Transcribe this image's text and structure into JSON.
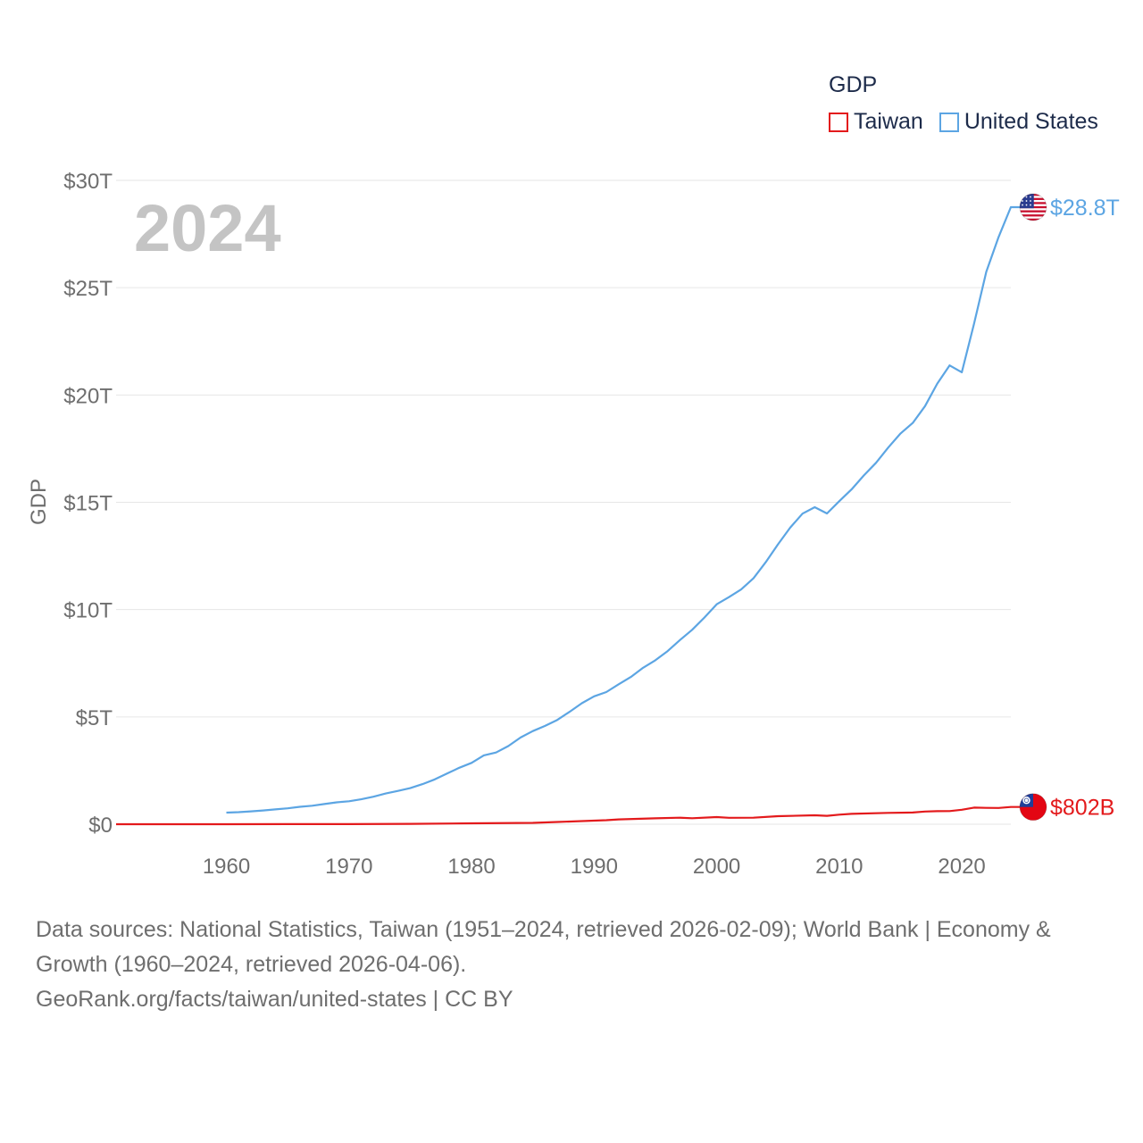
{
  "chart_data": {
    "type": "line",
    "title": "",
    "watermark_year": "2024",
    "ylabel": "GDP",
    "xlabel": "",
    "xlim": [
      1951,
      2024
    ],
    "ylim": [
      0,
      30
    ],
    "y_unit": "trillion USD",
    "x_ticks": [
      1960,
      1970,
      1980,
      1990,
      2000,
      2010,
      2020
    ],
    "y_ticks": [
      {
        "value": 0,
        "label": "$0"
      },
      {
        "value": 5,
        "label": "$5T"
      },
      {
        "value": 10,
        "label": "$10T"
      },
      {
        "value": 15,
        "label": "$15T"
      },
      {
        "value": 20,
        "label": "$20T"
      },
      {
        "value": 25,
        "label": "$25T"
      },
      {
        "value": 30,
        "label": "$30T"
      }
    ],
    "grid": true,
    "legend": {
      "title": "GDP",
      "position": "top-right"
    },
    "series": [
      {
        "name": "Taiwan",
        "color": "#e31a1c",
        "end_label": "$802B",
        "flag": "taiwan-flag",
        "x": [
          1951,
          1955,
          1960,
          1965,
          1970,
          1975,
          1980,
          1985,
          1987,
          1990,
          1991,
          1992,
          1995,
          1997,
          1998,
          2000,
          2001,
          2003,
          2005,
          2008,
          2009,
          2010,
          2011,
          2014,
          2016,
          2017,
          2018,
          2019,
          2020,
          2021,
          2022,
          2023,
          2024
        ],
        "values": [
          0.001,
          0.002,
          0.002,
          0.003,
          0.006,
          0.016,
          0.042,
          0.064,
          0.104,
          0.166,
          0.187,
          0.223,
          0.274,
          0.302,
          0.279,
          0.331,
          0.299,
          0.305,
          0.375,
          0.416,
          0.39,
          0.444,
          0.484,
          0.53,
          0.543,
          0.59,
          0.609,
          0.611,
          0.673,
          0.775,
          0.762,
          0.756,
          0.802
        ]
      },
      {
        "name": "United States",
        "color": "#5ca5e3",
        "end_label": "$28.8T",
        "flag": "us-flag",
        "x": [
          1960,
          1961,
          1962,
          1963,
          1964,
          1965,
          1966,
          1967,
          1968,
          1969,
          1970,
          1971,
          1972,
          1973,
          1974,
          1975,
          1976,
          1977,
          1978,
          1979,
          1980,
          1981,
          1982,
          1983,
          1984,
          1985,
          1986,
          1987,
          1988,
          1989,
          1990,
          1991,
          1992,
          1993,
          1994,
          1995,
          1996,
          1997,
          1998,
          1999,
          2000,
          2001,
          2002,
          2003,
          2004,
          2005,
          2006,
          2007,
          2008,
          2009,
          2010,
          2011,
          2012,
          2013,
          2014,
          2015,
          2016,
          2017,
          2018,
          2019,
          2020,
          2021,
          2022,
          2023,
          2024
        ],
        "values": [
          0.54,
          0.56,
          0.6,
          0.64,
          0.69,
          0.74,
          0.81,
          0.86,
          0.94,
          1.02,
          1.07,
          1.16,
          1.28,
          1.43,
          1.55,
          1.68,
          1.87,
          2.09,
          2.36,
          2.63,
          2.86,
          3.21,
          3.34,
          3.64,
          4.04,
          4.34,
          4.58,
          4.86,
          5.24,
          5.64,
          5.96,
          6.16,
          6.52,
          6.86,
          7.29,
          7.64,
          8.07,
          8.58,
          9.06,
          9.63,
          10.25,
          10.58,
          10.94,
          11.46,
          12.21,
          13.04,
          13.82,
          14.47,
          14.77,
          14.48,
          15.05,
          15.6,
          16.25,
          16.84,
          17.55,
          18.21,
          18.7,
          19.48,
          20.53,
          21.38,
          21.06,
          23.32,
          25.74,
          27.36,
          28.75
        ]
      }
    ]
  },
  "footer": {
    "sources": "Data sources: National Statistics, Taiwan (1951–2024, retrieved 2026-02-09); World Bank | Economy & Growth (1960–2024, retrieved 2026-04-06).",
    "attribution": "GeoRank.org/facts/taiwan/united-states | CC BY"
  }
}
